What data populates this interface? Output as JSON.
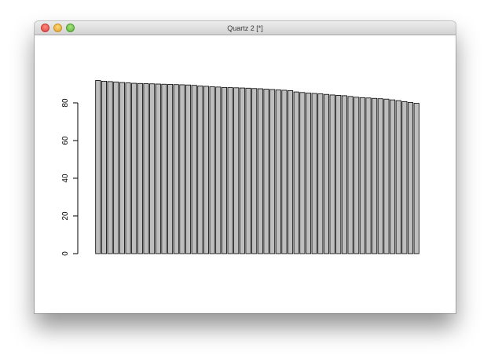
{
  "window": {
    "title": "Quartz 2 [*]",
    "buttons": [
      "close",
      "minimize",
      "zoom"
    ],
    "button_colors": [
      "#e0443e",
      "#dea123",
      "#5bb53a"
    ]
  },
  "chart_data": {
    "type": "bar",
    "title": "",
    "xlabel": "",
    "ylabel": "",
    "ylim": [
      0,
      92
    ],
    "y_ticks": [
      0,
      20,
      40,
      60,
      80
    ],
    "y_tick_labels": [
      "0",
      "20",
      "40",
      "60",
      "80"
    ],
    "bar_fill": "#bebebe",
    "bar_stroke": "#000000",
    "values": [
      91.9,
      91.5,
      91.3,
      91.1,
      90.8,
      90.6,
      90.4,
      90.3,
      90.2,
      90.1,
      90.0,
      89.9,
      89.8,
      89.7,
      89.6,
      89.5,
      89.3,
      89.0,
      88.8,
      88.6,
      88.4,
      88.2,
      88.1,
      88.0,
      87.9,
      87.8,
      87.6,
      87.5,
      87.3,
      87.1,
      86.9,
      86.7,
      86.5,
      85.8,
      85.5,
      85.2,
      85.0,
      84.8,
      84.5,
      84.2,
      84.0,
      83.8,
      83.4,
      83.0,
      82.8,
      82.6,
      82.4,
      82.2,
      82.0,
      81.6,
      81.2,
      80.7,
      80.2,
      79.8
    ]
  }
}
